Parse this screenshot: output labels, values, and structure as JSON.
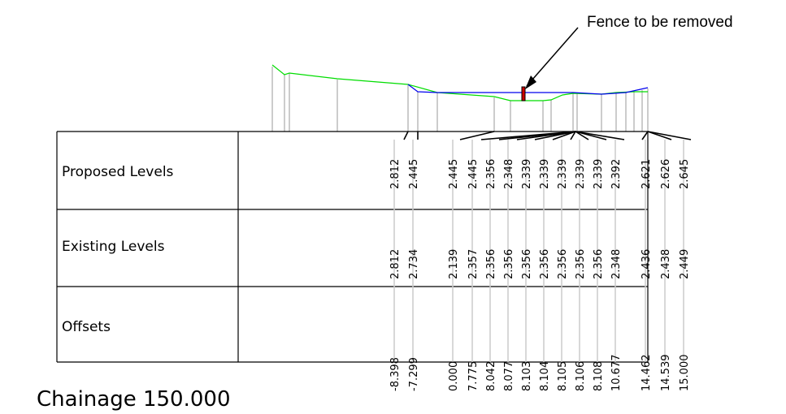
{
  "annotation": {
    "text": "Fence to be removed"
  },
  "table": {
    "rows": [
      "Proposed Levels",
      "Existing Levels",
      "Offsets"
    ]
  },
  "chainage": {
    "label": "Chainage 150.000"
  },
  "columns": [
    {
      "proposed": "2.812",
      "existing": "2.812",
      "offset": "-8.398"
    },
    {
      "proposed": "2.445",
      "existing": "2.734",
      "offset": "-7.299"
    },
    {
      "proposed": "2.445",
      "existing": "2.139",
      "offset": "0.000"
    },
    {
      "proposed": "2.445",
      "existing": "2.357",
      "offset": "7.775"
    },
    {
      "proposed": "2.356",
      "existing": "2.356",
      "offset": "8.042"
    },
    {
      "proposed": "2.348",
      "existing": "2.356",
      "offset": "8.077"
    },
    {
      "proposed": "2.339",
      "existing": "2.356",
      "offset": "8.103"
    },
    {
      "proposed": "2.339",
      "existing": "2.356",
      "offset": "8.104"
    },
    {
      "proposed": "2.339",
      "existing": "2.356",
      "offset": "8.105"
    },
    {
      "proposed": "2.339",
      "existing": "2.356",
      "offset": "8.106"
    },
    {
      "proposed": "2.339",
      "existing": "2.356",
      "offset": "8.108"
    },
    {
      "proposed": "2.392",
      "existing": "2.348",
      "offset": "10.677"
    },
    {
      "proposed": "2.621",
      "existing": "2.436",
      "offset": "14.462"
    },
    {
      "proposed": "2.626",
      "existing": "2.438",
      "offset": "14.539"
    },
    {
      "proposed": "2.645",
      "existing": "2.449",
      "offset": "15.000"
    }
  ],
  "colors": {
    "existing_ground": "#00dd00",
    "proposed_surface": "#0000ee",
    "fence": "#cc0000",
    "leader_lines": "#cccccc"
  }
}
